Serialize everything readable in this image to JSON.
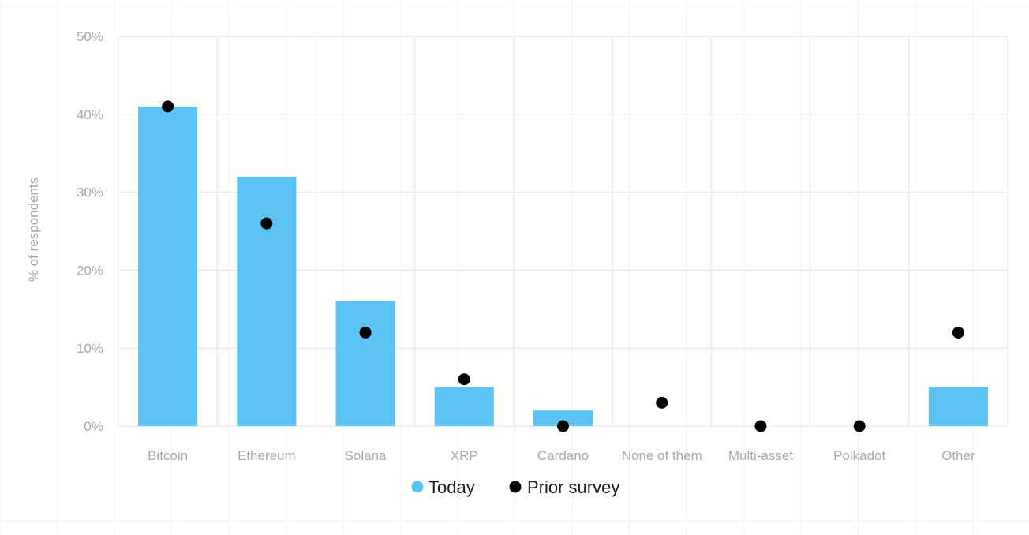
{
  "chart_data": {
    "type": "bar",
    "categories": [
      "Bitcoin",
      "Ethereum",
      "Solana",
      "XRP",
      "Cardano",
      "None of them",
      "Multi-asset",
      "Polkadot",
      "Other"
    ],
    "series": [
      {
        "name": "Today",
        "type": "bar",
        "color": "#5bc4f5",
        "values": [
          41,
          32,
          16,
          5,
          2,
          0,
          0,
          0,
          5
        ]
      },
      {
        "name": "Prior survey",
        "type": "scatter",
        "color": "#000000",
        "values": [
          41,
          26,
          12,
          6,
          0,
          3,
          0,
          0,
          12
        ]
      }
    ],
    "ylabel": "% of respondents",
    "ylim": [
      0,
      50
    ],
    "yticks": [
      0,
      10,
      20,
      30,
      40,
      50
    ],
    "ytick_labels": [
      "0%",
      "10%",
      "20%",
      "30%",
      "40%",
      "50%"
    ],
    "grid": true,
    "legend_position": "bottom-center"
  },
  "colors": {
    "grid": "#ececec",
    "background_grid": "#f3f3f3"
  }
}
